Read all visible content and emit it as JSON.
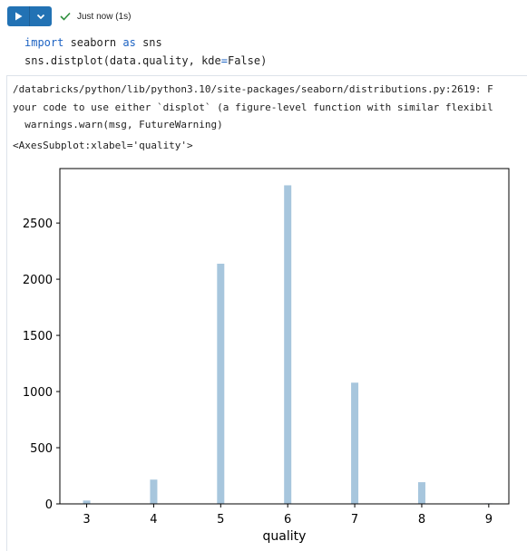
{
  "toolbar": {
    "run_icon": "play-icon",
    "menu_icon": "chevron-down-icon",
    "status_icon": "check-icon",
    "status_text": "Just now (1s)",
    "accent": "#2272b4",
    "success": "#2f8f3e"
  },
  "code": {
    "line1": {
      "kw": "import",
      "mid": " seaborn ",
      "kw2": "as",
      "rest": " sns"
    },
    "line2": {
      "pre": "sns.distplot(data.quality, kde",
      "eq": "=",
      "post": "False)"
    }
  },
  "output": {
    "stderr_lines": [
      "/databricks/python/lib/python3.10/site-packages/seaborn/distributions.py:2619: F",
      "your code to use either `displot` (a figure-level function with similar flexibil",
      "  warnings.warn(msg, FutureWarning)"
    ],
    "repr": "<AxesSubplot:xlabel='quality'>"
  },
  "chart_data": {
    "type": "bar",
    "xlabel": "quality",
    "ylabel": "",
    "x_ticks": [
      3,
      4,
      5,
      6,
      7,
      8,
      9
    ],
    "y_ticks": [
      0,
      500,
      1000,
      1500,
      2000,
      2500
    ],
    "xlim": [
      2.6,
      9.3
    ],
    "ylim": [
      0,
      2985
    ],
    "categories": [
      3,
      4,
      5,
      6,
      7,
      8,
      9
    ],
    "values": [
      30,
      216,
      2138,
      2836,
      1079,
      193,
      5
    ],
    "bar_color": "#a7c6dd",
    "grid": false
  }
}
